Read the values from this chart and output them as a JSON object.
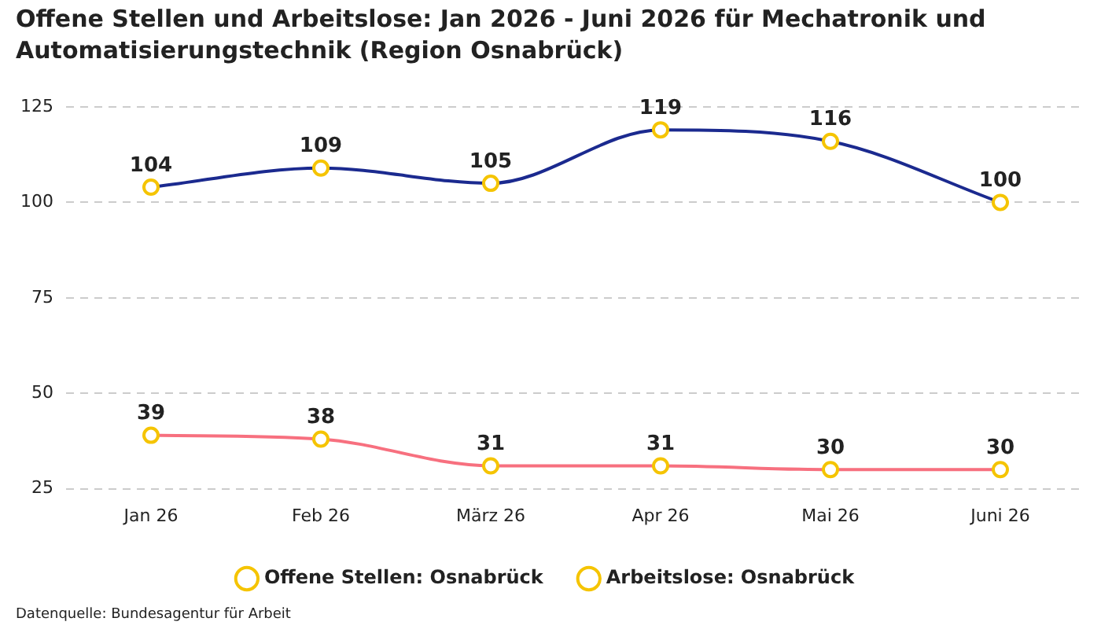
{
  "chart_data": {
    "type": "line",
    "title": "Offene Stellen und Arbeitslose: Jan 2026 - Juni 2026 für Mechatronik und Automatisierungstechnik (Region Osnabrück)",
    "categories": [
      "Jan 26",
      "Feb 26",
      "März 26",
      "Apr 26",
      "Mai 26",
      "Juni 26"
    ],
    "series": [
      {
        "name": "Offene Stellen: Osnabrück",
        "color": "#1b2a8f",
        "values": [
          104,
          109,
          105,
          119,
          116,
          100
        ]
      },
      {
        "name": "Arbeitslose: Osnabrück",
        "color": "#f7707f",
        "values": [
          39,
          38,
          31,
          31,
          30,
          30
        ]
      }
    ],
    "ylim": [
      25,
      125
    ],
    "yticks": [
      25,
      50,
      75,
      100,
      125
    ],
    "grid": "y",
    "legend": "bottom",
    "marker": "circle",
    "line_style": "solid",
    "data_labels": true,
    "annotations": [
      "Datenquelle: Bundesagentur für Arbeit"
    ]
  }
}
